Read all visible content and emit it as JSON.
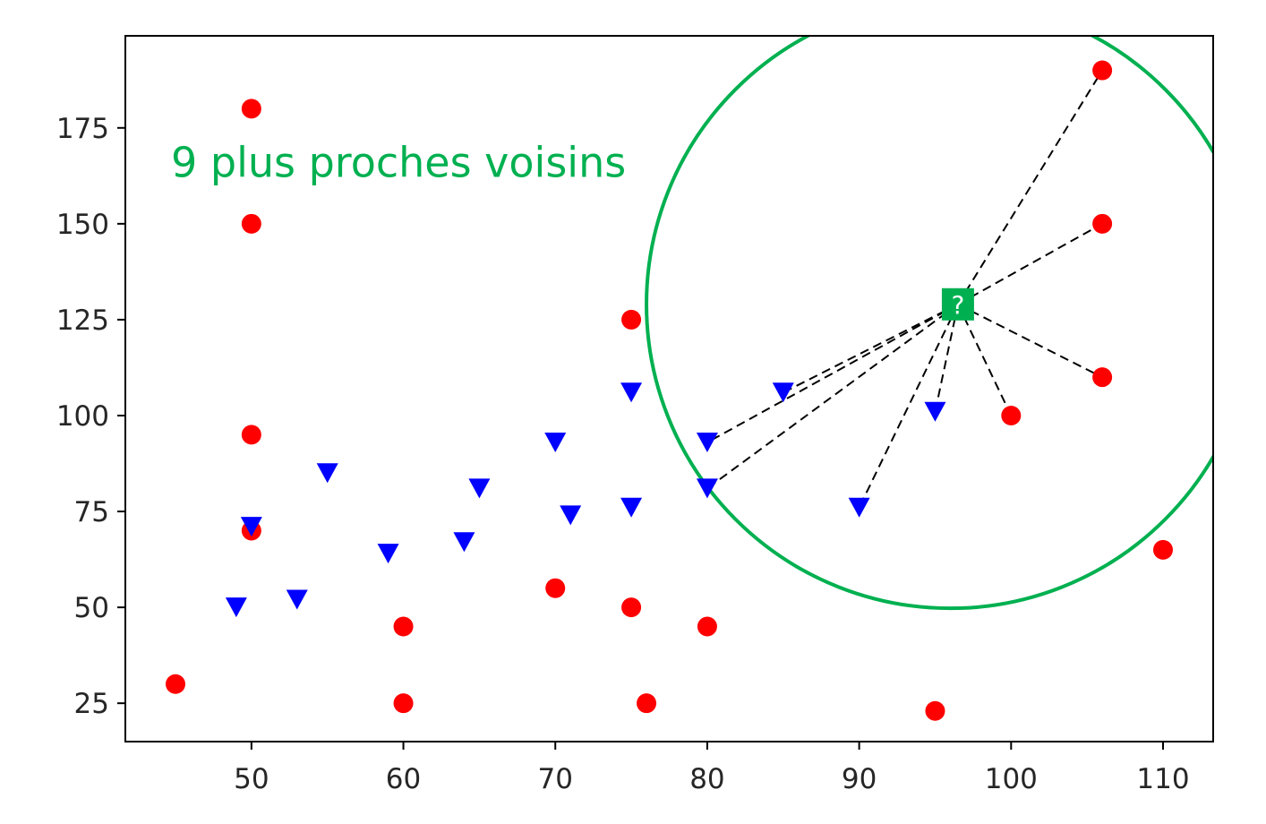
{
  "chart_data": {
    "type": "scatter",
    "title": "",
    "xlabel": "",
    "ylabel": "",
    "xlim": [
      41.7,
      113.3
    ],
    "ylim": [
      15.0,
      199.0
    ],
    "xticks": [
      50,
      60,
      70,
      80,
      90,
      100,
      110
    ],
    "yticks": [
      25,
      50,
      75,
      100,
      125,
      150,
      175
    ],
    "grid": false,
    "legend": "none",
    "series": [
      {
        "marker": "circle",
        "color": "#ff0000",
        "points": [
          [
            45,
            30
          ],
          [
            50,
            180
          ],
          [
            50,
            150
          ],
          [
            50,
            95
          ],
          [
            50,
            70
          ],
          [
            60,
            45
          ],
          [
            60,
            25
          ],
          [
            70,
            55
          ],
          [
            75,
            125
          ],
          [
            75,
            50
          ],
          [
            76,
            25
          ],
          [
            80,
            45
          ],
          [
            95,
            23
          ],
          [
            100,
            100
          ],
          [
            106,
            190
          ],
          [
            106,
            150
          ],
          [
            106,
            110
          ],
          [
            110,
            65
          ]
        ]
      },
      {
        "marker": "triangle-down",
        "color": "#0000ff",
        "points": [
          [
            49,
            50
          ],
          [
            50,
            71
          ],
          [
            53,
            52
          ],
          [
            55,
            85
          ],
          [
            59,
            64
          ],
          [
            64,
            67
          ],
          [
            65,
            81
          ],
          [
            70,
            93
          ],
          [
            71,
            74
          ],
          [
            75,
            106
          ],
          [
            75,
            76
          ],
          [
            80,
            93
          ],
          [
            80,
            81
          ],
          [
            85,
            106
          ],
          [
            90,
            76
          ],
          [
            95,
            101
          ]
        ]
      }
    ],
    "query_point": {
      "x": 96.5,
      "y": 129,
      "label": "?",
      "color": "#00b050"
    },
    "neighbor_lines": [
      [
        106,
        190
      ],
      [
        106,
        150
      ],
      [
        106,
        110
      ],
      [
        100,
        100
      ],
      [
        95,
        101
      ],
      [
        90,
        76
      ],
      [
        85,
        106
      ],
      [
        80,
        93
      ],
      [
        80,
        81
      ]
    ],
    "circle": {
      "cx": 96,
      "cy": 129,
      "radius_x": 20.0,
      "color": "#00b050"
    },
    "annotation": {
      "text": "9 plus proches voisins",
      "x": 45,
      "y": 166,
      "color": "#00b050"
    }
  }
}
